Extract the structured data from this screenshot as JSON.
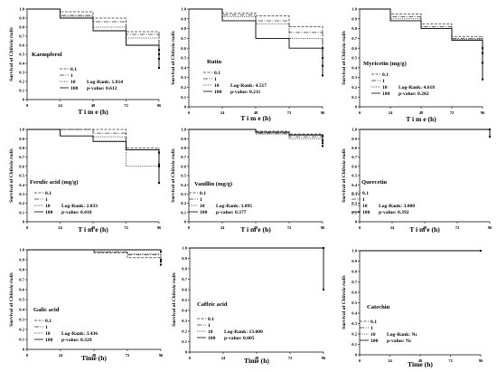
{
  "figure": {
    "ylabel_prefix": "Survival of ",
    "ylabel_species": "Chilesia rudis",
    "legend_labels": [
      "0.1",
      "1",
      "10",
      "100"
    ],
    "line_color": "#000000",
    "series_styles": [
      {
        "dash": "3,1.5",
        "stroke": "#333333"
      },
      {
        "dash": "5,1.5,1,1.5",
        "stroke": "#333333"
      },
      {
        "dash": "1.2,1.2",
        "stroke": "#333333"
      },
      {
        "dash": "",
        "stroke": "#000000"
      }
    ]
  },
  "chart_data": [
    {
      "type": "line",
      "title": "Kaempferol",
      "xlabel": "T i m e  (h)",
      "ylabel": "Survival of Chilesia rudis",
      "xlim": [
        0,
        96
      ],
      "ylim": [
        0,
        1.0
      ],
      "xticks": [
        "0",
        "24",
        "48",
        "72",
        "96"
      ],
      "yticks": [
        "0",
        "0.1",
        "0.2",
        "0.3",
        "0.4",
        "0.5",
        "0.6",
        "0.7",
        "0.8",
        "0.9",
        "1.0"
      ],
      "log_rank": "Log-Rank: 1.814",
      "p_value": "p-value: 0.612",
      "series": [
        {
          "name": "0.1",
          "x": [
            0,
            24,
            48,
            72,
            96
          ],
          "y": [
            1.0,
            0.97,
            0.9,
            0.75,
            0.55
          ]
        },
        {
          "name": "1",
          "x": [
            0,
            24,
            48,
            72,
            96
          ],
          "y": [
            1.0,
            0.93,
            0.86,
            0.72,
            0.5
          ]
        },
        {
          "name": "10",
          "x": [
            0,
            24,
            48,
            72,
            96
          ],
          "y": [
            1.0,
            0.92,
            0.8,
            0.68,
            0.45
          ]
        },
        {
          "name": "100",
          "x": [
            0,
            24,
            48,
            72,
            96
          ],
          "y": [
            1.0,
            0.9,
            0.76,
            0.6,
            0.35
          ]
        }
      ]
    },
    {
      "type": "line",
      "title": "Rutin",
      "xlabel": "T i m e  (h)",
      "ylabel": "Survival of Chilesia rudis",
      "xlim": [
        0,
        96
      ],
      "ylim": [
        0,
        1.0
      ],
      "xticks": [
        "0",
        "24",
        "48",
        "72",
        "96"
      ],
      "yticks": [
        "0",
        "0.1",
        "0.2",
        "0.3",
        "0.4",
        "0.5",
        "0.6",
        "0.7",
        "0.8",
        "0.9",
        "1.0"
      ],
      "log_rank": "Log-Rank: 4.517",
      "p_value": "p-value: 0.211",
      "series": [
        {
          "name": "0.1",
          "x": [
            0,
            24,
            48,
            72,
            96
          ],
          "y": [
            1.0,
            0.96,
            0.93,
            0.82,
            0.6
          ]
        },
        {
          "name": "1",
          "x": [
            0,
            24,
            48,
            72,
            96
          ],
          "y": [
            1.0,
            0.94,
            0.88,
            0.76,
            0.5
          ]
        },
        {
          "name": "10",
          "x": [
            0,
            24,
            48,
            72,
            96
          ],
          "y": [
            1.0,
            0.92,
            0.85,
            0.7,
            0.42
          ]
        },
        {
          "name": "100",
          "x": [
            0,
            24,
            48,
            72,
            96
          ],
          "y": [
            1.0,
            0.88,
            0.7,
            0.6,
            0.32
          ]
        }
      ]
    },
    {
      "type": "line",
      "title": "Myricetin (mg/g)",
      "xlabel": "T i m e  (h)",
      "ylabel": "Survival of Chilesia rudis",
      "xlim": [
        0,
        96
      ],
      "ylim": [
        0,
        1.0
      ],
      "xticks": [
        "0",
        "24",
        "48",
        "72",
        "96"
      ],
      "yticks": [
        "0",
        "0.1",
        "0.2",
        "0.3",
        "0.4",
        "0.5",
        "0.6",
        "0.7",
        "0.8",
        "0.9",
        "1.0"
      ],
      "log_rank": "Log-Rank: 4.618",
      "p_value": "p-value: 0.202",
      "series": [
        {
          "name": "0.1",
          "x": [
            0,
            24,
            48,
            72,
            96
          ],
          "y": [
            1.0,
            0.95,
            0.85,
            0.72,
            0.6
          ]
        },
        {
          "name": "1",
          "x": [
            0,
            24,
            48,
            72,
            96
          ],
          "y": [
            1.0,
            0.92,
            0.82,
            0.7,
            0.55
          ]
        },
        {
          "name": "10",
          "x": [
            0,
            24,
            48,
            72,
            96
          ],
          "y": [
            1.0,
            0.9,
            0.8,
            0.69,
            0.45
          ]
        },
        {
          "name": "100",
          "x": [
            0,
            24,
            48,
            72,
            96
          ],
          "y": [
            1.0,
            0.88,
            0.8,
            0.68,
            0.28
          ]
        }
      ]
    },
    {
      "type": "line",
      "title": "Ferulic acid (mg/g)",
      "xlabel": "T i m e  (h)",
      "ylabel": "Survival of Chilesia rudis",
      "xlim": [
        0,
        96
      ],
      "ylim": [
        0,
        1.0
      ],
      "xticks": [
        "0",
        "24",
        "48",
        "72",
        "96"
      ],
      "yticks": [
        "0",
        "0.1",
        "0.2",
        "0.3",
        "0.4",
        "0.5",
        "0.6",
        "0.7",
        "0.8",
        "0.9",
        "1.0"
      ],
      "log_rank": "Log-Rank: 2.833",
      "p_value": "p-value: 0.418",
      "series": [
        {
          "name": "0.1",
          "x": [
            0,
            24,
            48,
            72,
            96
          ],
          "y": [
            1.0,
            1.0,
            1.0,
            0.8,
            0.75
          ]
        },
        {
          "name": "1",
          "x": [
            0,
            24,
            48,
            72,
            96
          ],
          "y": [
            1.0,
            1.0,
            0.96,
            0.78,
            0.62
          ]
        },
        {
          "name": "10",
          "x": [
            0,
            24,
            48,
            72,
            96
          ],
          "y": [
            1.0,
            1.0,
            0.92,
            0.6,
            0.6
          ]
        },
        {
          "name": "100",
          "x": [
            0,
            24,
            48,
            72,
            96
          ],
          "y": [
            1.0,
            0.93,
            0.87,
            0.78,
            0.42
          ]
        }
      ]
    },
    {
      "type": "line",
      "title": "Vanillin (mg/g)",
      "xlabel": "T i m e  (h)",
      "ylabel": "Survival of Chilesia rudis",
      "xlim": [
        0,
        96
      ],
      "ylim": [
        0,
        1.0
      ],
      "xticks": [
        "0",
        "24",
        "48",
        "72",
        "96"
      ],
      "yticks": [
        "0",
        "0.1",
        "0.2",
        "0.3",
        "0.4",
        "0.5",
        "0.6",
        "0.7",
        "0.8",
        "0.9",
        "1.0"
      ],
      "log_rank": "Log-Rank: 3.095",
      "p_value": "p-value: 0.377",
      "series": [
        {
          "name": "0.1",
          "x": [
            0,
            24,
            48,
            72,
            96
          ],
          "y": [
            1.0,
            1.0,
            0.98,
            0.95,
            0.93
          ]
        },
        {
          "name": "1",
          "x": [
            0,
            24,
            48,
            72,
            96
          ],
          "y": [
            1.0,
            1.0,
            0.96,
            0.92,
            0.88
          ]
        },
        {
          "name": "10",
          "x": [
            0,
            24,
            48,
            72,
            96
          ],
          "y": [
            1.0,
            1.0,
            0.95,
            0.9,
            0.82
          ]
        },
        {
          "name": "100",
          "x": [
            0,
            24,
            48,
            72,
            96
          ],
          "y": [
            1.0,
            1.0,
            0.97,
            0.94,
            0.85
          ]
        }
      ]
    },
    {
      "type": "line",
      "title": "Quercetin",
      "xlabel": "T i m e  (h)",
      "ylabel": "Survival of Chilesia rudis",
      "xlim": [
        0,
        96
      ],
      "ylim": [
        0,
        1.0
      ],
      "xticks": [
        "0",
        "24",
        "48",
        "72",
        "96"
      ],
      "yticks": [
        "0",
        "0.1",
        "0.2",
        "0.3",
        "0.4",
        "0.5",
        "0.6",
        "0.7",
        "0.8",
        "0.9",
        "1.0"
      ],
      "log_rank": "Log-Rank: 3.000",
      "p_value": "p-value: 0.392",
      "series": [
        {
          "name": "0.1",
          "x": [
            0,
            24,
            48,
            72,
            96
          ],
          "y": [
            1.0,
            1.0,
            1.0,
            1.0,
            1.0
          ]
        },
        {
          "name": "1",
          "x": [
            0,
            24,
            48,
            72,
            96
          ],
          "y": [
            1.0,
            1.0,
            1.0,
            1.0,
            1.0
          ]
        },
        {
          "name": "10",
          "x": [
            0,
            24,
            48,
            72,
            96
          ],
          "y": [
            1.0,
            1.0,
            1.0,
            1.0,
            1.0
          ]
        },
        {
          "name": "100",
          "x": [
            0,
            24,
            48,
            72,
            96
          ],
          "y": [
            1.0,
            1.0,
            1.0,
            1.0,
            0.92
          ]
        }
      ]
    },
    {
      "type": "line",
      "title": "Galic acid",
      "xlabel": "Time (h)",
      "ylabel": "Survival of Chilesia rudis",
      "xlim": [
        0,
        96
      ],
      "ylim": [
        0,
        1.0
      ],
      "xticks": [
        "0",
        "24",
        "48",
        "72",
        "96"
      ],
      "yticks": [
        "0",
        "0.1",
        "0.2",
        "0.3",
        "0.4",
        "0.5",
        "0.6",
        "0.7",
        "0.8",
        "0.9",
        "1.0"
      ],
      "log_rank": "Log-Rank: 3.436",
      "p_value": "p-value: 0.329",
      "series": [
        {
          "name": "0.1",
          "x": [
            0,
            24,
            48,
            72,
            96
          ],
          "y": [
            1.0,
            1.0,
            0.97,
            0.92,
            0.88
          ]
        },
        {
          "name": "1",
          "x": [
            0,
            24,
            48,
            72,
            96
          ],
          "y": [
            1.0,
            1.0,
            0.98,
            0.95,
            0.9
          ]
        },
        {
          "name": "10",
          "x": [
            0,
            24,
            48,
            72,
            96
          ],
          "y": [
            1.0,
            1.0,
            0.98,
            0.96,
            0.85
          ]
        },
        {
          "name": "100",
          "x": [
            0,
            24,
            48,
            72,
            96
          ],
          "y": [
            1.0,
            1.0,
            1.0,
            1.0,
            0.98
          ]
        }
      ]
    },
    {
      "type": "line",
      "title": "Caffeic acid",
      "xlabel": "Time (h)",
      "ylabel": "Survival of Chilesia rudis",
      "xlim": [
        0,
        96
      ],
      "ylim": [
        0,
        1.0
      ],
      "xticks": [
        "0",
        "24",
        "48",
        "72",
        "96"
      ],
      "yticks": [
        "0",
        "0.1",
        "0.2",
        "0.3",
        "0.4",
        "0.5",
        "0.6",
        "0.7",
        "0.8",
        "0.9",
        "1.0"
      ],
      "log_rank": "Log-Rank: 13.000",
      "p_value": "p-value: 0.005",
      "series": [
        {
          "name": "0.1",
          "x": [
            0,
            24,
            48,
            72,
            96
          ],
          "y": [
            1.0,
            1.0,
            1.0,
            1.0,
            1.0
          ]
        },
        {
          "name": "1",
          "x": [
            0,
            24,
            48,
            72,
            96
          ],
          "y": [
            1.0,
            1.0,
            1.0,
            1.0,
            1.0
          ]
        },
        {
          "name": "10",
          "x": [
            0,
            24,
            48,
            72,
            96
          ],
          "y": [
            1.0,
            1.0,
            1.0,
            1.0,
            1.0
          ]
        },
        {
          "name": "100",
          "x": [
            0,
            24,
            48,
            72,
            96
          ],
          "y": [
            1.0,
            1.0,
            1.0,
            1.0,
            0.6
          ]
        }
      ]
    },
    {
      "type": "line",
      "title": "Catechin",
      "xlabel": "Time (h)",
      "ylabel": "Survival of Chilesia rudis",
      "xlim": [
        0,
        96
      ],
      "ylim": [
        0,
        1.0
      ],
      "xticks": [
        "0",
        "24",
        "48",
        "72",
        "96"
      ],
      "yticks": [
        "0",
        "0.1",
        "0.2",
        "0.3",
        "0.4",
        "0.5",
        "0.6",
        "0.7",
        "0.8",
        "0.9",
        "1.0"
      ],
      "log_rank": "Log-Rank: Nc",
      "p_value": "p-value: Nc",
      "series": [
        {
          "name": "0.1",
          "x": [
            0,
            24,
            48,
            72,
            96
          ],
          "y": [
            1.0,
            1.0,
            1.0,
            1.0,
            1.0
          ]
        },
        {
          "name": "1",
          "x": [
            0,
            24,
            48,
            72,
            96
          ],
          "y": [
            1.0,
            1.0,
            1.0,
            1.0,
            1.0
          ]
        },
        {
          "name": "10",
          "x": [
            0,
            24,
            48,
            72,
            96
          ],
          "y": [
            1.0,
            1.0,
            1.0,
            1.0,
            1.0
          ]
        },
        {
          "name": "100",
          "x": [
            0,
            24,
            48,
            72,
            96
          ],
          "y": [
            1.0,
            1.0,
            1.0,
            1.0,
            1.0
          ]
        }
      ]
    }
  ]
}
